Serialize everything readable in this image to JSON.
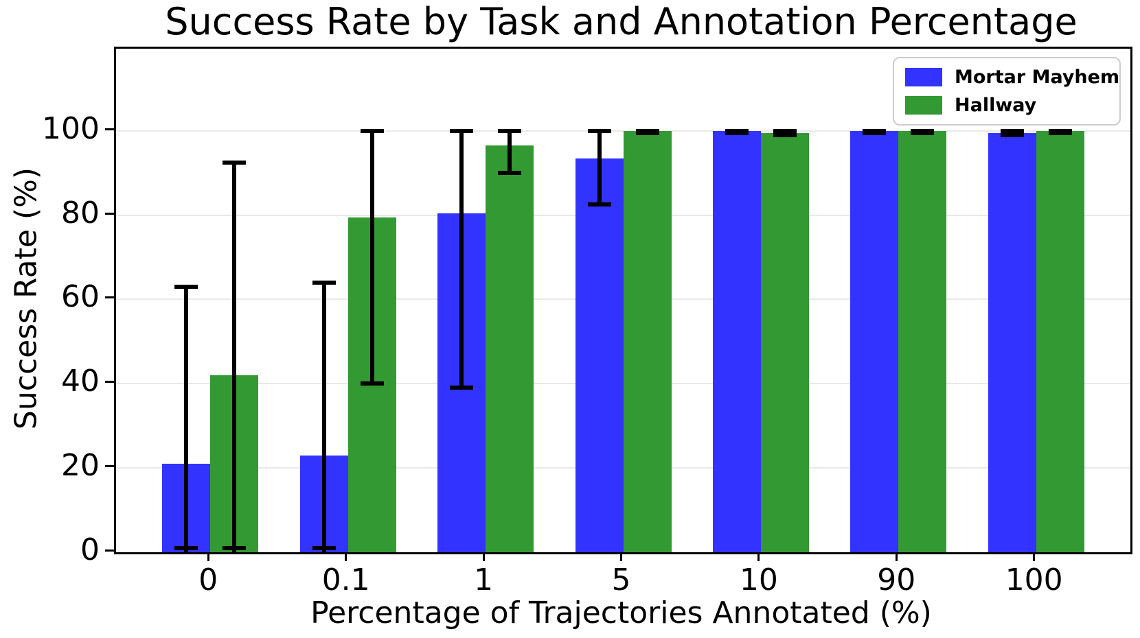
{
  "title": "Success Rate by Task and Annotation Percentage",
  "xlabel": "Percentage of Trajectories Annotated (%)",
  "ylabel": "Success Rate (%)",
  "legend": [
    {
      "label": "Mortar Mayhem",
      "color": "#3333ff"
    },
    {
      "label": "Hallway",
      "color": "#339933"
    }
  ],
  "chart_data": {
    "type": "bar",
    "title": "Success Rate by Task and Annotation Percentage",
    "xlabel": "Percentage of Trajectories Annotated (%)",
    "ylabel": "Success Rate (%)",
    "categories": [
      "0",
      "0.1",
      "1",
      "5",
      "10",
      "90",
      "100"
    ],
    "series": [
      {
        "name": "Mortar Mayhem",
        "color": "#3333ff",
        "values": [
          21,
          23,
          80.5,
          93.5,
          100,
          100,
          99.5
        ],
        "error_low": [
          0,
          0,
          39,
          82.5,
          99.5,
          99.5,
          99
        ],
        "error_high": [
          63,
          64,
          100,
          100,
          100,
          100,
          100
        ]
      },
      {
        "name": "Hallway",
        "color": "#339933",
        "values": [
          42,
          79.5,
          96.5,
          100,
          99.5,
          100,
          100
        ],
        "error_low": [
          0,
          40,
          90,
          99.5,
          99,
          99.5,
          99.5
        ],
        "error_high": [
          92.5,
          100,
          100,
          100,
          100,
          100,
          100
        ]
      }
    ],
    "yticks": [
      0,
      20,
      40,
      60,
      80,
      100
    ],
    "ylim": [
      0,
      119.5
    ],
    "grid": true,
    "grid_axis": "y",
    "error_bar_color": "#000000",
    "legend_position": "upper right"
  }
}
